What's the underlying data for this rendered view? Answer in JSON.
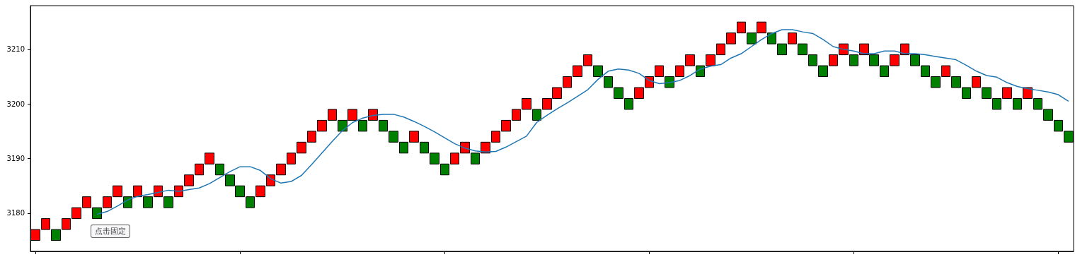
{
  "chart_data": {
    "type": "candlestick",
    "categories": [
      null,
      null,
      null,
      null,
      null,
      null,
      null,
      null,
      null,
      null,
      null,
      null,
      null,
      null,
      null,
      null,
      null,
      null,
      null,
      null,
      null,
      null,
      null,
      null,
      null,
      null,
      null,
      null,
      null,
      null,
      null,
      null,
      null,
      null,
      null,
      null,
      null,
      null,
      null,
      null,
      null,
      null,
      null,
      null,
      null,
      null,
      null,
      null,
      null,
      null,
      null,
      null,
      null,
      null,
      null,
      null,
      null,
      null,
      null,
      null,
      null,
      null,
      null,
      null,
      null,
      null,
      null,
      null,
      null,
      null,
      null,
      null,
      null,
      null,
      null,
      null,
      null,
      null,
      null,
      null,
      null,
      null,
      null,
      null,
      null,
      null,
      null,
      null,
      null,
      null,
      null,
      null,
      null,
      null,
      null,
      null,
      null,
      null,
      null,
      null,
      null,
      null
    ],
    "ohlc": [
      [
        3175,
        3177,
        3175,
        3177
      ],
      [
        3177,
        3179,
        3177,
        3179
      ],
      [
        3177,
        3177,
        3175,
        3175
      ],
      [
        3177,
        3179,
        3177,
        3179
      ],
      [
        3179,
        3181,
        3179,
        3181
      ],
      [
        3181,
        3183,
        3181,
        3183
      ],
      [
        3181,
        3181,
        3179,
        3179
      ],
      [
        3181,
        3183,
        3181,
        3183
      ],
      [
        3183,
        3185,
        3183,
        3185
      ],
      [
        3183,
        3183,
        3181,
        3181
      ],
      [
        3183,
        3185,
        3183,
        3185
      ],
      [
        3183,
        3183,
        3181,
        3181
      ],
      [
        3183,
        3185,
        3183,
        3185
      ],
      [
        3183,
        3183,
        3181,
        3181
      ],
      [
        3183,
        3185,
        3183,
        3185
      ],
      [
        3185,
        3187,
        3185,
        3187
      ],
      [
        3187,
        3189,
        3187,
        3189
      ],
      [
        3189,
        3191,
        3189,
        3191
      ],
      [
        3189,
        3189,
        3187,
        3187
      ],
      [
        3187,
        3187,
        3185,
        3185
      ],
      [
        3185,
        3185,
        3183,
        3183
      ],
      [
        3183,
        3183,
        3181,
        3181
      ],
      [
        3183,
        3185,
        3183,
        3185
      ],
      [
        3185,
        3187,
        3185,
        3187
      ],
      [
        3187,
        3189,
        3187,
        3189
      ],
      [
        3189,
        3191,
        3189,
        3191
      ],
      [
        3191,
        3193,
        3191,
        3193
      ],
      [
        3193,
        3195,
        3193,
        3195
      ],
      [
        3195,
        3197,
        3195,
        3197
      ],
      [
        3197,
        3199,
        3197,
        3199
      ],
      [
        3197,
        3197,
        3195,
        3195
      ],
      [
        3197,
        3199,
        3197,
        3199
      ],
      [
        3197,
        3197,
        3195,
        3195
      ],
      [
        3197,
        3199,
        3197,
        3199
      ],
      [
        3197,
        3197,
        3195,
        3195
      ],
      [
        3195,
        3195,
        3193,
        3193
      ],
      [
        3193,
        3193,
        3191,
        3191
      ],
      [
        3193,
        3195,
        3193,
        3195
      ],
      [
        3193,
        3193,
        3191,
        3191
      ],
      [
        3191,
        3191,
        3189,
        3189
      ],
      [
        3189,
        3189,
        3187,
        3187
      ],
      [
        3189,
        3191,
        3189,
        3191
      ],
      [
        3191,
        3193,
        3191,
        3193
      ],
      [
        3191,
        3191,
        3189,
        3189
      ],
      [
        3191,
        3193,
        3191,
        3193
      ],
      [
        3193,
        3195,
        3193,
        3195
      ],
      [
        3195,
        3197,
        3195,
        3197
      ],
      [
        3197,
        3199,
        3197,
        3199
      ],
      [
        3199,
        3201,
        3199,
        3201
      ],
      [
        3199,
        3199,
        3197,
        3197
      ],
      [
        3199,
        3201,
        3199,
        3201
      ],
      [
        3201,
        3203,
        3201,
        3203
      ],
      [
        3203,
        3205,
        3203,
        3205
      ],
      [
        3205,
        3207,
        3205,
        3207
      ],
      [
        3207,
        3209,
        3207,
        3209
      ],
      [
        3207,
        3207,
        3205,
        3205
      ],
      [
        3205,
        3205,
        3203,
        3203
      ],
      [
        3203,
        3203,
        3201,
        3201
      ],
      [
        3201,
        3201,
        3199,
        3199
      ],
      [
        3201,
        3203,
        3201,
        3203
      ],
      [
        3203,
        3205,
        3203,
        3205
      ],
      [
        3205,
        3207,
        3205,
        3207
      ],
      [
        3205,
        3205,
        3203,
        3203
      ],
      [
        3205,
        3207,
        3205,
        3207
      ],
      [
        3207,
        3209,
        3207,
        3209
      ],
      [
        3207,
        3207,
        3205,
        3205
      ],
      [
        3207,
        3209,
        3207,
        3209
      ],
      [
        3209,
        3211,
        3209,
        3211
      ],
      [
        3211,
        3213,
        3211,
        3213
      ],
      [
        3213,
        3215,
        3213,
        3215
      ],
      [
        3213,
        3213,
        3211,
        3211
      ],
      [
        3213,
        3215,
        3213,
        3215
      ],
      [
        3213,
        3213,
        3211,
        3211
      ],
      [
        3211,
        3211,
        3209,
        3209
      ],
      [
        3211,
        3213,
        3211,
        3213
      ],
      [
        3211,
        3211,
        3209,
        3209
      ],
      [
        3209,
        3209,
        3207,
        3207
      ],
      [
        3207,
        3207,
        3205,
        3205
      ],
      [
        3207,
        3209,
        3207,
        3209
      ],
      [
        3209,
        3211,
        3209,
        3211
      ],
      [
        3209,
        3209,
        3207,
        3207
      ],
      [
        3209,
        3211,
        3209,
        3211
      ],
      [
        3209,
        3209,
        3207,
        3207
      ],
      [
        3207,
        3207,
        3205,
        3205
      ],
      [
        3207,
        3209,
        3207,
        3209
      ],
      [
        3209,
        3211,
        3209,
        3211
      ],
      [
        3209,
        3209,
        3207,
        3207
      ],
      [
        3207,
        3207,
        3205,
        3205
      ],
      [
        3205,
        3205,
        3203,
        3203
      ],
      [
        3205,
        3207,
        3205,
        3207
      ],
      [
        3205,
        3205,
        3203,
        3203
      ],
      [
        3203,
        3203,
        3201,
        3201
      ],
      [
        3203,
        3205,
        3203,
        3205
      ],
      [
        3203,
        3203,
        3201,
        3201
      ],
      [
        3201,
        3201,
        3199,
        3199
      ],
      [
        3201,
        3203,
        3201,
        3203
      ],
      [
        3201,
        3201,
        3199,
        3199
      ],
      [
        3201,
        3203,
        3201,
        3203
      ],
      [
        3201,
        3201,
        3199,
        3199
      ],
      [
        3199,
        3199,
        3197,
        3197
      ],
      [
        3197,
        3197,
        3195,
        3195
      ],
      [
        3195,
        3195,
        3193,
        3193
      ]
    ],
    "colors": [
      "#ff0000",
      "#ff0000",
      "#008000",
      "#ff0000",
      "#ff0000",
      "#ff0000",
      "#008000",
      "#ff0000",
      "#ff0000",
      "#008000",
      "#ff0000",
      "#008000",
      "#ff0000",
      "#008000",
      "#ff0000",
      "#ff0000",
      "#ff0000",
      "#ff0000",
      "#008000",
      "#008000",
      "#008000",
      "#008000",
      "#ff0000",
      "#ff0000",
      "#ff0000",
      "#ff0000",
      "#ff0000",
      "#ff0000",
      "#ff0000",
      "#ff0000",
      "#008000",
      "#ff0000",
      "#008000",
      "#ff0000",
      "#008000",
      "#008000",
      "#008000",
      "#ff0000",
      "#008000",
      "#008000",
      "#008000",
      "#ff0000",
      "#ff0000",
      "#008000",
      "#ff0000",
      "#ff0000",
      "#ff0000",
      "#ff0000",
      "#ff0000",
      "#008000",
      "#ff0000",
      "#ff0000",
      "#ff0000",
      "#ff0000",
      "#ff0000",
      "#008000",
      "#008000",
      "#008000",
      "#008000",
      "#ff0000",
      "#ff0000",
      "#ff0000",
      "#008000",
      "#ff0000",
      "#ff0000",
      "#008000",
      "#ff0000",
      "#ff0000",
      "#ff0000",
      "#ff0000",
      "#008000",
      "#ff0000",
      "#008000",
      "#008000",
      "#ff0000",
      "#008000",
      "#008000",
      "#008000",
      "#ff0000",
      "#ff0000",
      "#008000",
      "#ff0000",
      "#008000",
      "#008000",
      "#ff0000",
      "#ff0000",
      "#008000",
      "#008000",
      "#008000",
      "#ff0000",
      "#008000",
      "#008000",
      "#ff0000",
      "#008000",
      "#008000",
      "#ff0000",
      "#008000",
      "#ff0000",
      "#008000",
      "#008000",
      "#008000",
      "#008000"
    ],
    "series": [
      {
        "type": "line",
        "color": "#1f77b4",
        "values": [
          null,
          null,
          null,
          null,
          null,
          null,
          3179.8,
          3180.3,
          3181.3,
          3182.4,
          3183.1,
          3183.4,
          3183.8,
          3184.2,
          3184.0,
          3184.3,
          3184.6,
          3185.4,
          3186.5,
          3187.6,
          3188.5,
          3188.5,
          3187.8,
          3186.3,
          3185.5,
          3185.8,
          3186.9,
          3188.9,
          3191.0,
          3193.1,
          3195.1,
          3196.6,
          3197.4,
          3197.9,
          3198.1,
          3198.1,
          3197.6,
          3196.8,
          3195.9,
          3194.9,
          3193.8,
          3192.7,
          3191.9,
          3191.4,
          3191.2,
          3191.3,
          3192.1,
          3193.1,
          3194.1,
          3196.6,
          3197.9,
          3199.1,
          3200.2,
          3201.4,
          3202.6,
          3204.5,
          3206.0,
          3206.4,
          3206.2,
          3205.6,
          3204.3,
          3203.7,
          3203.9,
          3204.3,
          3205.2,
          3206.4,
          3206.9,
          3207.2,
          3208.4,
          3209.2,
          3210.5,
          3211.8,
          3212.9,
          3213.6,
          3213.6,
          3213.2,
          3212.9,
          3211.8,
          3210.5,
          3210.0,
          3209.7,
          3209.2,
          3209.2,
          3209.7,
          3209.7,
          3209.2,
          3209.2,
          3209.0,
          3208.7,
          3208.4,
          3208.1,
          3207.1,
          3206.0,
          3205.2,
          3204.9,
          3203.9,
          3203.2,
          3202.8,
          3202.5,
          3202.2,
          3201.7,
          3200.5
        ]
      }
    ],
    "ylim": [
      3173,
      3218
    ],
    "yticks": [
      3180,
      3190,
      3200,
      3210
    ],
    "tick_labels": "y",
    "annotations": [
      "点击固定"
    ]
  }
}
